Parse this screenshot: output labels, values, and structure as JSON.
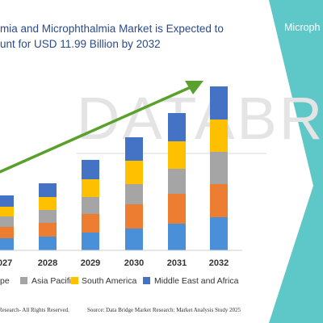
{
  "header": {
    "title_line1": "mia and Microphthalmia Market is Expected to",
    "title_line2": "unt for USD 11.99 Billion by 2032"
  },
  "side_panel": {
    "text": "Microph",
    "color": "#5ec8c8"
  },
  "watermark": {
    "text": "DATABRIDGE"
  },
  "footer": {
    "left": "Research- All Rights Reserved.",
    "right": "Source: Data Bridge Market Research: Market Analysis Study 2025"
  },
  "chart_data": {
    "type": "bar",
    "stacked": true,
    "categories": [
      "027",
      "2028",
      "2029",
      "2030",
      "2031",
      "2032"
    ],
    "ylim": [
      0,
      215
    ],
    "grid": false,
    "legend_position": "bottom",
    "series": [
      {
        "name": "",
        "color": "#4a90d9",
        "values": [
          15,
          17,
          22,
          27,
          33,
          41
        ]
      },
      {
        "name": "",
        "color": "#ed7d31",
        "values": [
          14,
          17,
          23,
          30,
          37,
          41
        ]
      },
      {
        "name": "",
        "color": "#a5a5a5",
        "values": [
          13,
          16,
          21,
          25,
          31,
          40
        ]
      },
      {
        "name": "",
        "color": "#ffc000",
        "values": [
          12,
          16,
          22,
          29,
          34,
          40
        ]
      },
      {
        "name": "",
        "color": "#4472c4",
        "values": [
          14,
          17,
          24,
          29,
          35,
          41
        ]
      }
    ],
    "legend": [
      {
        "label": "pe",
        "color": "#a5a5a5"
      },
      {
        "label": "Asia Pacific",
        "color": "#a5a5a5"
      },
      {
        "label": "South America",
        "color": "#ffc000"
      },
      {
        "label": "Middle East and Africa",
        "color": "#4472c4"
      }
    ],
    "trend_arrow_color": "#5aa02c"
  }
}
